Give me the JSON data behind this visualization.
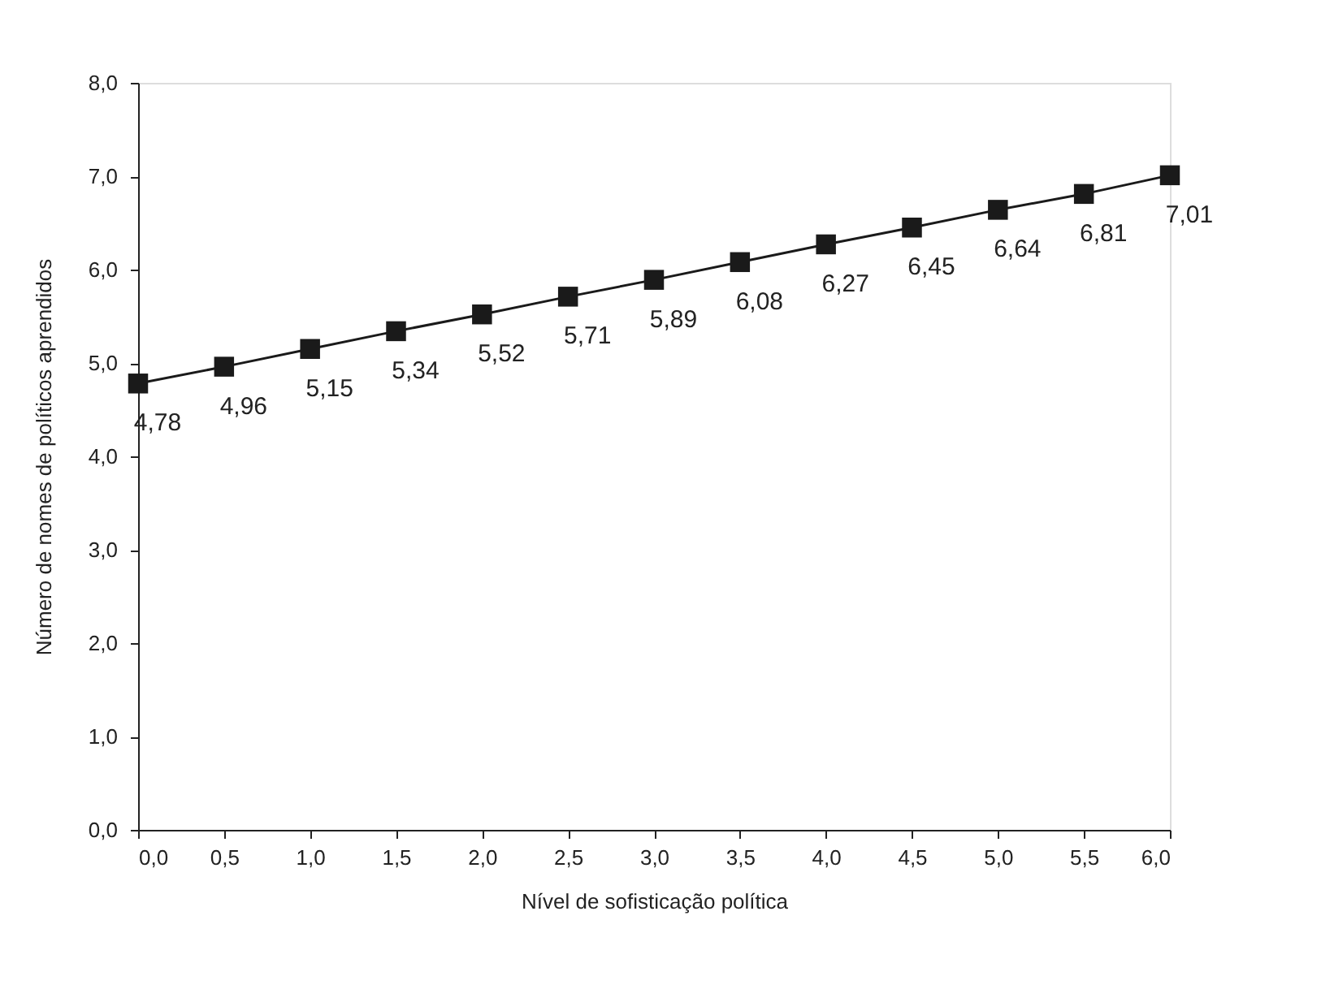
{
  "chart_data": {
    "type": "line",
    "xlabel": "Nível de sofisticação política",
    "ylabel": "Número de nomes de políticos aprendidos",
    "x": [
      0,
      0.5,
      1,
      1.5,
      2,
      2.5,
      3,
      3.5,
      4,
      4.5,
      5,
      5.5,
      6
    ],
    "series": [
      {
        "color": "#1a1a1a",
        "values": [
          4.78,
          4.96,
          5.15,
          5.34,
          5.52,
          5.71,
          5.89,
          6.08,
          6.27,
          6.45,
          6.64,
          6.81,
          7.01
        ],
        "value_labels": [
          "4,78",
          "4,96",
          "5,15",
          "5,34",
          "5,52",
          "5,71",
          "5,89",
          "6,08",
          "6,27",
          "6,45",
          "6,64",
          "6,81",
          "7,01"
        ]
      }
    ],
    "xlim": [
      0,
      6
    ],
    "ylim": [
      0,
      8
    ],
    "xticks": [
      {
        "value": 0,
        "label": "0,0"
      },
      {
        "value": 0.5,
        "label": "0,5"
      },
      {
        "value": 1,
        "label": "1,0"
      },
      {
        "value": 1.5,
        "label": "1,5"
      },
      {
        "value": 2,
        "label": "2,0"
      },
      {
        "value": 2.5,
        "label": "2,5"
      },
      {
        "value": 3,
        "label": "3,0"
      },
      {
        "value": 3.5,
        "label": "3,5"
      },
      {
        "value": 4,
        "label": "4,0"
      },
      {
        "value": 4.5,
        "label": "4,5"
      },
      {
        "value": 5,
        "label": "5,0"
      },
      {
        "value": 5.5,
        "label": "5,5"
      },
      {
        "value": 6,
        "label": "6,0"
      }
    ],
    "yticks": [
      {
        "value": 0,
        "label": "0,0"
      },
      {
        "value": 1,
        "label": "1,0"
      },
      {
        "value": 2,
        "label": "2,0"
      },
      {
        "value": 3,
        "label": "3,0"
      },
      {
        "value": 4,
        "label": "4,0"
      },
      {
        "value": 5,
        "label": "5,0"
      },
      {
        "value": 6,
        "label": "6,0"
      },
      {
        "value": 7,
        "label": "7,0"
      },
      {
        "value": 8,
        "label": "8,0"
      }
    ],
    "grid": false,
    "marker": "square",
    "line_style": "solid"
  }
}
